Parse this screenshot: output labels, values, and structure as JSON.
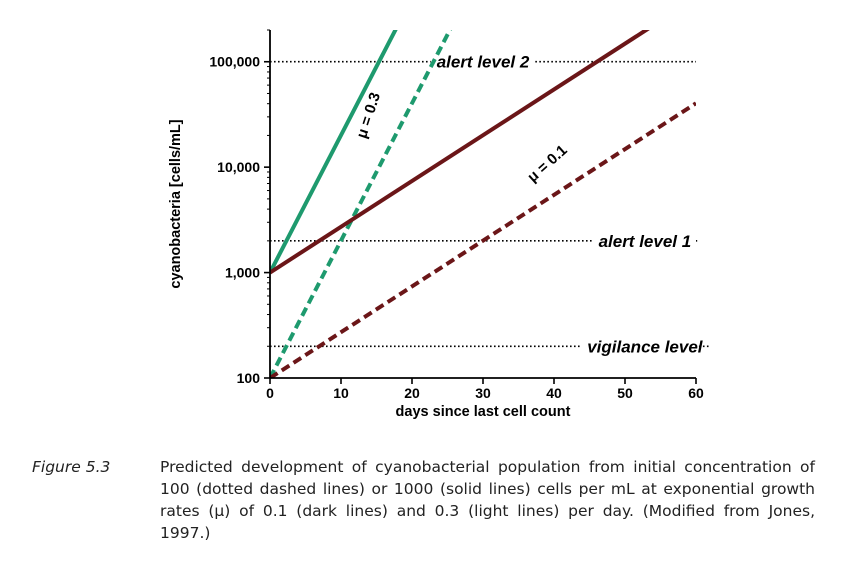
{
  "chart_data": {
    "type": "line",
    "xlabel": "days since last cell count",
    "ylabel": "cyanobacteria [cells/mL]",
    "xlim": [
      0,
      60
    ],
    "ylim": [
      100,
      200000
    ],
    "yscale": "log",
    "grid": false,
    "x_ticks": [
      {
        "value": 0,
        "label": "0"
      },
      {
        "value": 10,
        "label": "10"
      },
      {
        "value": 20,
        "label": "20"
      },
      {
        "value": 30,
        "label": "30"
      },
      {
        "value": 40,
        "label": "40"
      },
      {
        "value": 50,
        "label": "50"
      },
      {
        "value": 60,
        "label": "60"
      }
    ],
    "y_ticks": [
      {
        "value": 100,
        "label": "100"
      },
      {
        "value": 1000,
        "label": "1,000"
      },
      {
        "value": 10000,
        "label": "10,000"
      },
      {
        "value": 100000,
        "label": "100,000"
      }
    ],
    "series": [
      {
        "style": "solid",
        "color": "#1e9a6e",
        "rate": 0.3,
        "initial": 1000
      },
      {
        "style": "dashed",
        "color": "#1e9a6e",
        "rate": 0.3,
        "initial": 100
      },
      {
        "style": "solid",
        "color": "#6b1618",
        "rate": 0.1,
        "initial": 1000
      },
      {
        "style": "dashed",
        "color": "#6b1618",
        "rate": 0.1,
        "initial": 100
      }
    ],
    "reference_lines": [
      {
        "value": 100000,
        "label": "alert level 2",
        "label_x": 0.5
      },
      {
        "value": 2000,
        "label": "alert level 1",
        "label_x": 0.88
      },
      {
        "value": 200,
        "label": "vigilance level",
        "label_x": 0.88
      }
    ],
    "annotations": [
      {
        "text": "μ = 0.3",
        "x": 14.5,
        "y": 30000,
        "angle": -72
      },
      {
        "text": "μ = 0.1",
        "x": 39.5,
        "y": 10000,
        "angle": -42
      }
    ]
  },
  "caption": {
    "figure_label": "Figure 5.3",
    "text": "Predicted development of cyanobacterial population from initial concentration of 100 (dotted dashed lines) or 1000 (solid lines) cells per mL at exponential growth rates (μ) of 0.1 (dark lines) and 0.3 (light lines) per day. (Modified from Jones, 1997.)"
  }
}
